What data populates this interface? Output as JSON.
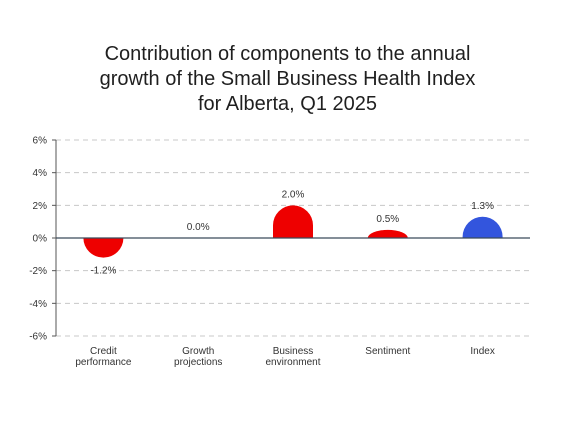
{
  "chart_data": {
    "type": "bar",
    "title_lines": [
      "Contribution of components to the annual",
      "growth of the Small Business Health Index",
      "for Alberta, Q1 2025"
    ],
    "categories": [
      [
        "Credit",
        "performance"
      ],
      [
        "Growth",
        "projections"
      ],
      [
        "Business",
        "environment"
      ],
      [
        "Sentiment"
      ],
      [
        "Index"
      ]
    ],
    "values": [
      -1.2,
      0.0,
      2.0,
      0.5,
      1.3
    ],
    "data_labels": [
      "-1.2%",
      "0.0%",
      "2.0%",
      "0.5%",
      "1.3%"
    ],
    "bar_colors": [
      "#ee0000",
      "#ee0000",
      "#ee0000",
      "#ee0000",
      "#3355dd"
    ],
    "ylim": [
      -6,
      6
    ],
    "yticks": [
      6,
      4,
      2,
      0,
      -2,
      -4,
      -6
    ],
    "ytick_labels": [
      "6%",
      "4%",
      "2%",
      "0%",
      "-2%",
      "-4%",
      "-6%"
    ],
    "grid": true,
    "legend": "none",
    "xlabel": "",
    "ylabel": ""
  }
}
